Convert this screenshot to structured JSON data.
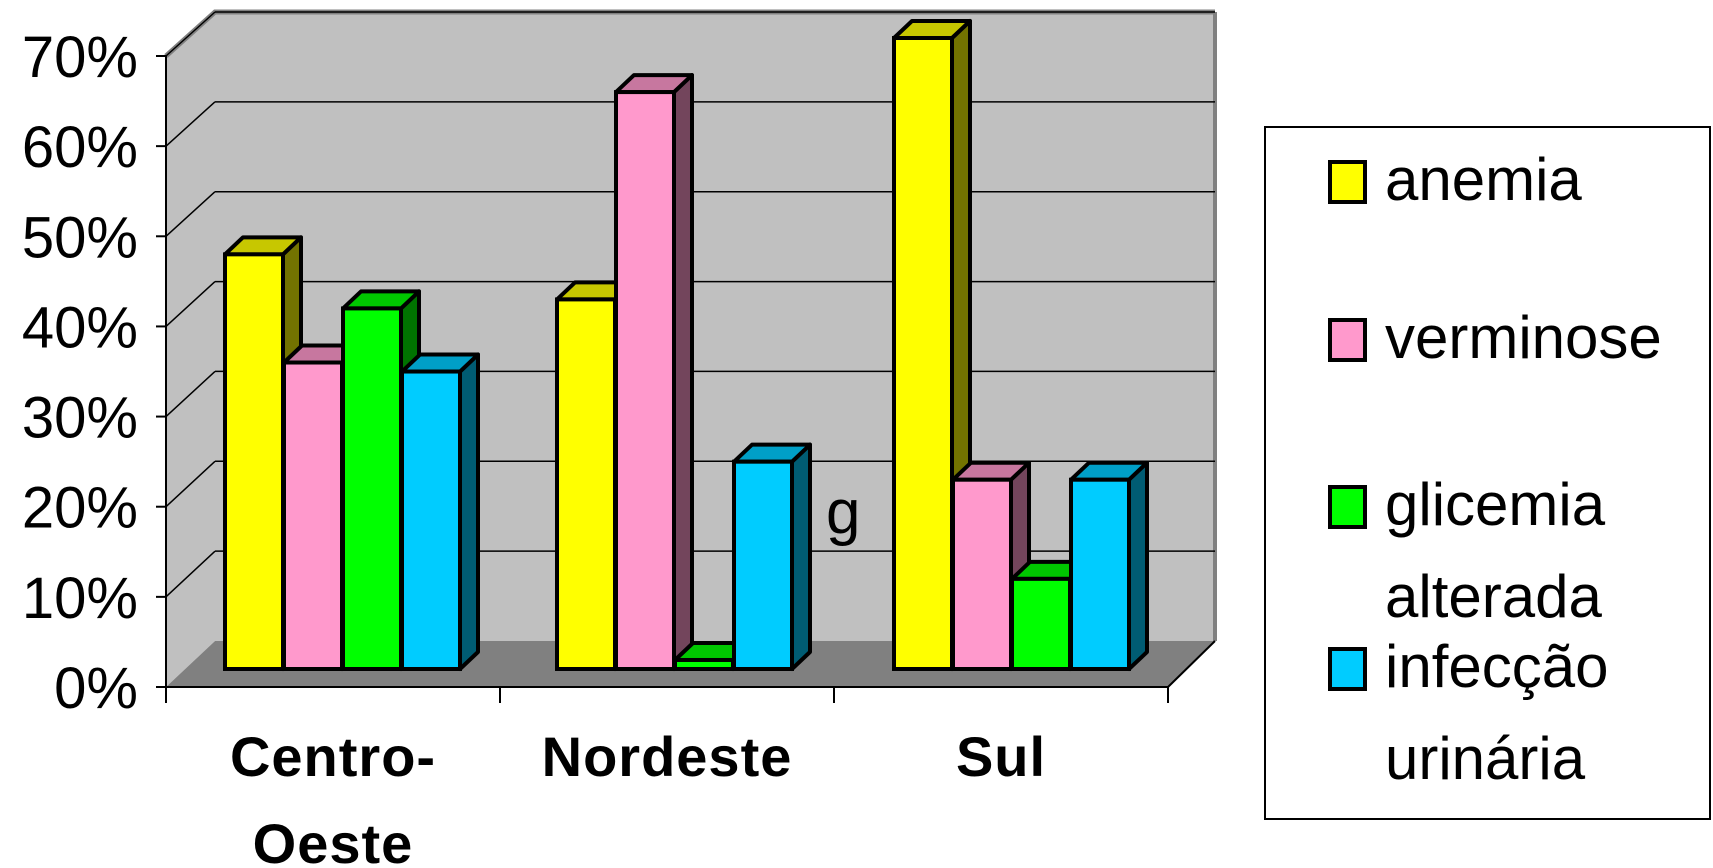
{
  "chart_data": {
    "type": "bar",
    "categories": [
      [
        "Centro-",
        "Oeste"
      ],
      [
        "Nordeste"
      ],
      [
        "Sul"
      ]
    ],
    "series": [
      {
        "name": "anemia",
        "legend_lines": [
          "anemia"
        ],
        "color": "#ffff00",
        "values": [
          0.46,
          0.41,
          0.7
        ]
      },
      {
        "name": "verminose",
        "legend_lines": [
          "verminose"
        ],
        "color": "#ff99cc",
        "values": [
          0.34,
          0.64,
          0.21
        ]
      },
      {
        "name": "glicemia alterada",
        "legend_lines": [
          "glicemia",
          "alterada"
        ],
        "color": "#00ff00",
        "values": [
          0.4,
          0.01,
          0.1
        ]
      },
      {
        "name": "infecção urinária",
        "legend_lines": [
          "infecção",
          "urinária"
        ],
        "color": "#00ccff",
        "values": [
          0.33,
          0.23,
          0.21
        ]
      }
    ],
    "y_ticks": [
      "0%",
      "10%",
      "20%",
      "30%",
      "40%",
      "50%",
      "60%",
      "70%"
    ],
    "ylim": [
      0,
      0.7
    ],
    "grid": true,
    "legend_position": "right",
    "annotation": "g",
    "title": "",
    "xlabel": "",
    "ylabel": ""
  }
}
